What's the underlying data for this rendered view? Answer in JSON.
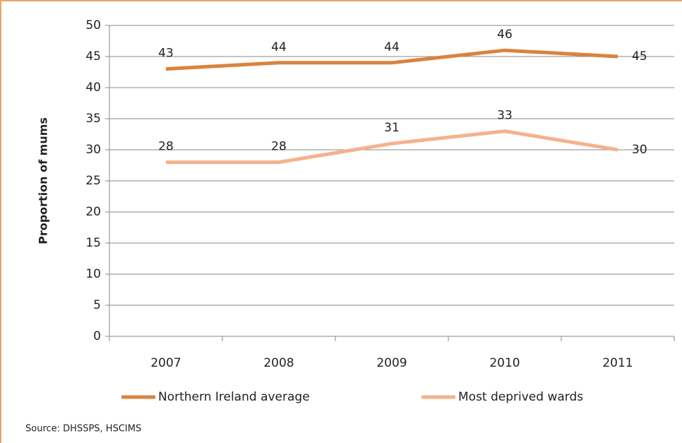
{
  "chart_data": {
    "type": "line",
    "y_label": "Proportion of mums",
    "categories": [
      "2007",
      "2008",
      "2009",
      "2010",
      "2011"
    ],
    "series": [
      {
        "name": "Northern Ireland average",
        "color": "#d9833f",
        "values": [
          43,
          44,
          44,
          46,
          45
        ]
      },
      {
        "name": "Most deprived wards",
        "color": "#f4b28d",
        "values": [
          28,
          28,
          31,
          33,
          30
        ]
      }
    ],
    "ylim": [
      0,
      50
    ],
    "yticks": [
      0,
      5,
      10,
      15,
      20,
      25,
      30,
      35,
      40,
      45,
      50
    ],
    "grid": true,
    "source": "Source: DHSSPS, HSCIMS"
  }
}
